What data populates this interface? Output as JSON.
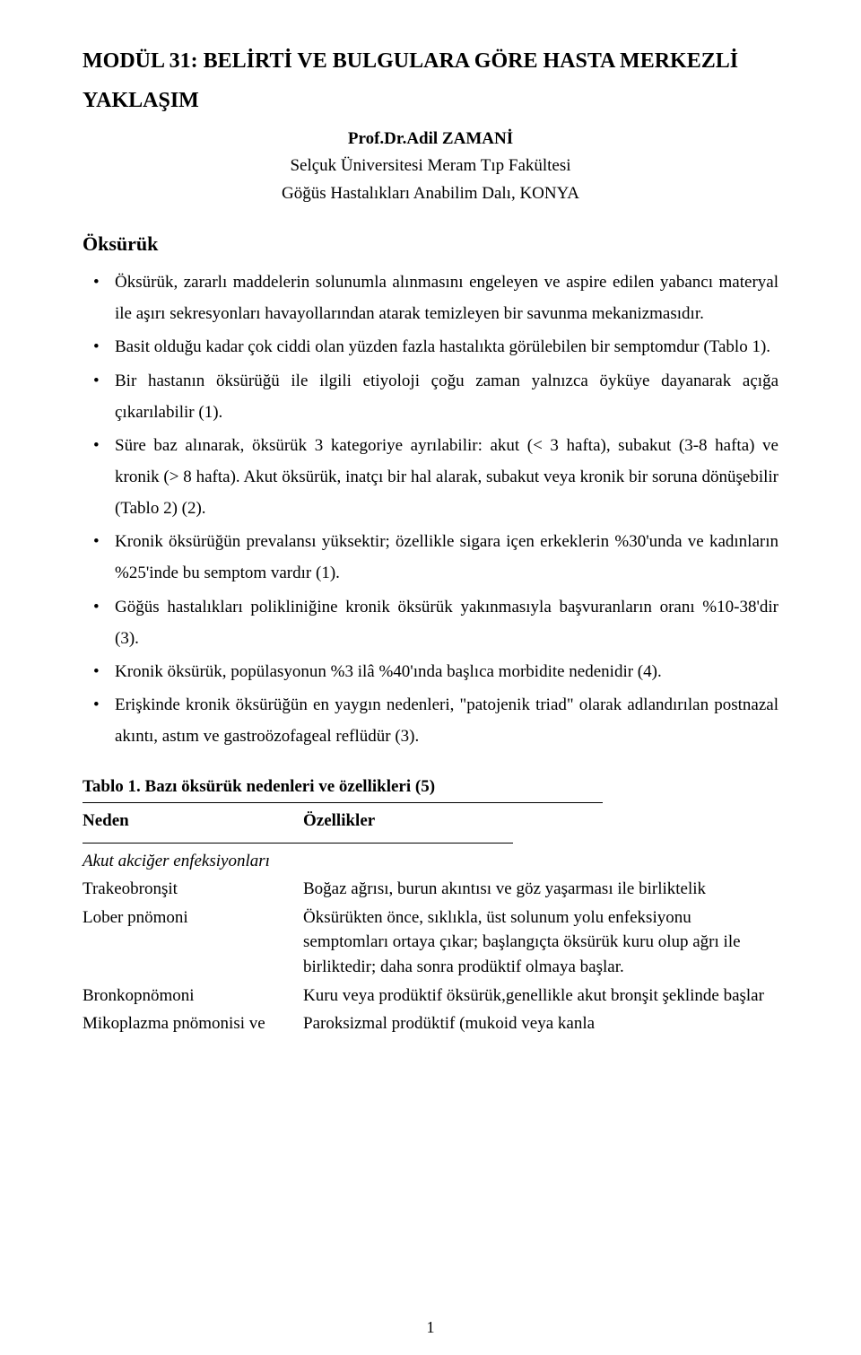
{
  "title_line1": "MODÜL 31: BELİRTİ VE BULGULARA GÖRE HASTA MERKEZLİ",
  "title_line2": "YAKLAŞIM",
  "author": "Prof.Dr.Adil ZAMANİ",
  "affil1": "Selçuk Üniversitesi Meram Tıp Fakültesi",
  "affil2": "Göğüs Hastalıkları Anabilim Dalı, KONYA",
  "section_heading": "Öksürük",
  "bullets": [
    "Öksürük, zararlı maddelerin solunumla alınmasını engeleyen ve aspire edilen yabancı materyal ile aşırı sekresyonları havayollarından atarak temizleyen bir savunma mekanizmasıdır.",
    "Basit olduğu kadar çok ciddi olan yüzden fazla hastalıkta görülebilen bir semptomdur (Tablo 1).",
    "Bir hastanın öksürüğü ile ilgili etiyoloji çoğu zaman yalnızca öyküye dayanarak açığa çıkarılabilir (1).",
    "Süre baz alınarak, öksürük 3 kategoriye ayrılabilir: akut (< 3 hafta), subakut (3-8 hafta) ve kronik (> 8 hafta). Akut öksürük, inatçı bir hal alarak, subakut veya kronik bir soruna dönüşebilir  (Tablo 2) (2).",
    "Kronik öksürüğün prevalansı yüksektir; özellikle sigara içen erkeklerin %30'unda ve kadınların %25'inde bu semptom vardır (1).",
    "Göğüs hastalıkları polikliniğine kronik öksürük yakınmasıyla başvuranların oranı %10-38'dir (3).",
    "Kronik öksürük, popülasyonun %3 ilâ %40'ında başlıca morbidite nedenidir (4).",
    "Erişkinde  kronik öksürüğün en yaygın nedenleri, \"patojenik triad\" olarak adlandırılan postnazal akıntı, astım ve gastroözofageal reflüdür (3)."
  ],
  "table_title": "Tablo 1. Bazı öksürük nedenleri ve özellikleri (5)",
  "col_header_1": "Neden",
  "col_header_2": "Özellikler",
  "group_header": "Akut akciğer enfeksiyonları",
  "rows": [
    {
      "c1": "Trakeobronşit",
      "c2": "Boğaz ağrısı, burun akıntısı ve göz yaşarması ile birliktelik"
    },
    {
      "c1": "Lober pnömoni",
      "c2": "Öksürükten önce, sıklıkla, üst solunum yolu enfeksiyonu semptomları ortaya çıkar; başlangıçta öksürük kuru olup ağrı ile birliktedir; daha sonra prodüktif olmaya başlar."
    },
    {
      "c1": "Bronkopnömoni",
      "c2": "Kuru veya prodüktif öksürük,genellikle akut bronşit şeklinde başlar"
    },
    {
      "c1": "Mikoplazma pnömonisi ve",
      "c2": "Paroksizmal prodüktif (mukoid veya kanla"
    }
  ],
  "page_number": "1"
}
